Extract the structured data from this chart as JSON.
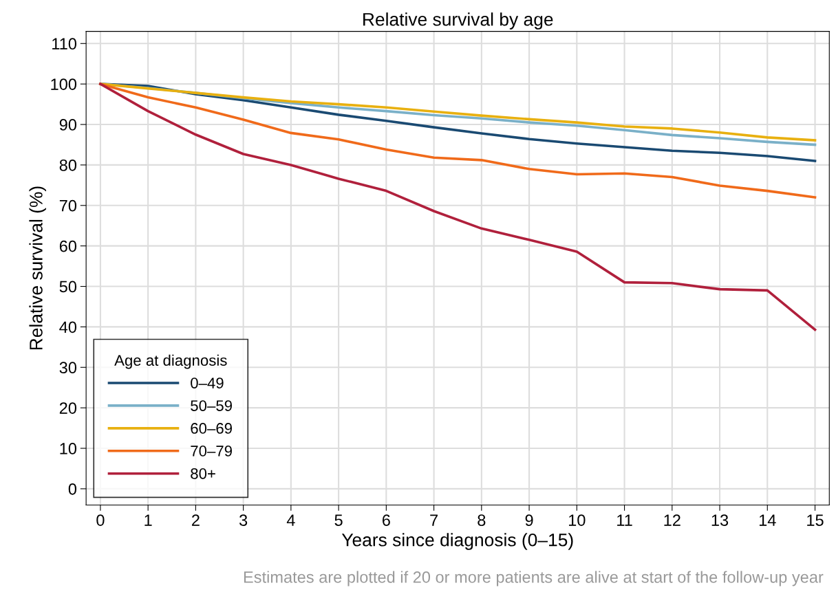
{
  "chart_data": {
    "type": "line",
    "title": "Relative survival by age",
    "xlabel": "Years since diagnosis (0–15)",
    "ylabel": "Relative survival (%)",
    "legend_title": "Age at diagnosis",
    "x": [
      0,
      1,
      2,
      3,
      4,
      5,
      6,
      7,
      8,
      9,
      10,
      11,
      12,
      13,
      14,
      15
    ],
    "series": [
      {
        "name": "0–49",
        "color": "#1a4a72",
        "values": [
          100,
          99.5,
          97.5,
          96,
          94.2,
          92.4,
          90.9,
          89.3,
          87.8,
          86.4,
          85.3,
          84.4,
          83.5,
          83,
          82.2,
          81
        ]
      },
      {
        "name": "50–59",
        "color": "#7ab0c8",
        "values": [
          100,
          99,
          97.8,
          96.5,
          95.3,
          94.2,
          93.3,
          92.3,
          91.5,
          90.5,
          89.7,
          88.6,
          87.4,
          86.6,
          85.7,
          85
        ]
      },
      {
        "name": "60–69",
        "color": "#e8b010",
        "values": [
          100,
          98.9,
          97.8,
          96.7,
          95.7,
          95,
          94.2,
          93.2,
          92.2,
          91.3,
          90.5,
          89.5,
          89,
          88,
          86.8,
          86.1
        ]
      },
      {
        "name": "70–79",
        "color": "#f06a1a",
        "values": [
          100,
          96.7,
          94.2,
          91.2,
          87.9,
          86.3,
          83.8,
          81.8,
          81.2,
          79,
          77.7,
          77.9,
          77,
          74.9,
          73.6,
          72
        ]
      },
      {
        "name": "80+",
        "color": "#b0203c",
        "values": [
          100,
          93.3,
          87.5,
          82.7,
          80,
          76.6,
          73.6,
          68.6,
          64.3,
          61.5,
          58.6,
          51,
          50.8,
          49.3,
          49,
          39.3
        ]
      }
    ],
    "xlim": [
      -0.3,
      15.3
    ],
    "xticks": [
      0,
      1,
      2,
      3,
      4,
      5,
      6,
      7,
      8,
      9,
      10,
      11,
      12,
      13,
      14,
      15
    ],
    "ylim": [
      -4,
      113
    ],
    "yticks": [
      0,
      10,
      20,
      30,
      40,
      50,
      60,
      70,
      80,
      90,
      100,
      110
    ],
    "grid": true,
    "legend": "bottom left",
    "marker": "none",
    "line_style": "solid",
    "annotations": [
      "Estimates are plotted if 20 or more patients are alive at start of the follow-up year"
    ]
  }
}
